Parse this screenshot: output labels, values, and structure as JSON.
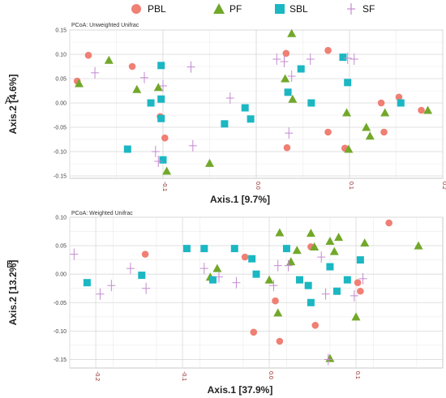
{
  "legend": [
    {
      "label": "PBL",
      "shape": "circle",
      "color": "#f07f74"
    },
    {
      "label": "PF",
      "shape": "triangle",
      "color": "#72a82a"
    },
    {
      "label": "SBL",
      "shape": "square",
      "color": "#1bb7c3"
    },
    {
      "label": "SF",
      "shape": "plus",
      "color": "#c48ad1"
    }
  ],
  "chart_data": [
    {
      "type": "scatter",
      "panel_label": "A",
      "title": "PCoA: Unweighted Unifrac",
      "xlabel": "Axis.1   [9.7%]",
      "ylabel": "Axis.2   [4.6%]",
      "xlim": [
        -0.2,
        0.2
      ],
      "ylim": [
        -0.155,
        0.15
      ],
      "xticks": [
        -0.1,
        0.0,
        0.1,
        0.2
      ],
      "xtick_labels": [
        "-0.1",
        "0.0",
        "0.1",
        "0.2"
      ],
      "yticks": [
        -0.15,
        -0.1,
        -0.05,
        0.0,
        0.05,
        0.1,
        0.15
      ],
      "ytick_labels": [
        "-0.15",
        "-0.10",
        "-0.05",
        "0.00",
        "0.05",
        "0.10",
        "0.15"
      ],
      "grid": true,
      "series": [
        {
          "name": "PBL",
          "points": [
            [
              -0.18,
              0.098
            ],
            [
              -0.192,
              0.045
            ],
            [
              -0.133,
              0.075
            ],
            [
              -0.103,
              -0.028
            ],
            [
              -0.098,
              -0.072
            ],
            [
              0.032,
              0.102
            ],
            [
              0.033,
              -0.092
            ],
            [
              0.077,
              0.108
            ],
            [
              0.077,
              -0.06
            ],
            [
              0.095,
              -0.093
            ],
            [
              0.134,
              0.0
            ],
            [
              0.137,
              -0.06
            ],
            [
              0.153,
              0.012
            ],
            [
              0.177,
              -0.015
            ]
          ]
        },
        {
          "name": "PF",
          "points": [
            [
              -0.19,
              0.04
            ],
            [
              -0.158,
              0.088
            ],
            [
              -0.128,
              0.028
            ],
            [
              -0.105,
              0.032
            ],
            [
              -0.096,
              -0.14
            ],
            [
              -0.05,
              -0.124
            ],
            [
              0.031,
              0.05
            ],
            [
              0.038,
              0.143
            ],
            [
              0.039,
              0.008
            ],
            [
              0.099,
              -0.095
            ],
            [
              0.097,
              -0.02
            ],
            [
              0.118,
              -0.05
            ],
            [
              0.122,
              -0.068
            ],
            [
              0.138,
              -0.02
            ],
            [
              0.184,
              -0.015
            ]
          ]
        },
        {
          "name": "SBL",
          "points": [
            [
              -0.138,
              -0.095
            ],
            [
              -0.113,
              0.0
            ],
            [
              -0.102,
              0.077
            ],
            [
              -0.102,
              0.008
            ],
            [
              -0.102,
              -0.032
            ],
            [
              -0.1,
              -0.117
            ],
            [
              -0.034,
              -0.043
            ],
            [
              -0.012,
              -0.01
            ],
            [
              -0.006,
              -0.033
            ],
            [
              0.034,
              0.022
            ],
            [
              0.048,
              0.07
            ],
            [
              0.059,
              0.0
            ],
            [
              0.093,
              0.094
            ],
            [
              0.098,
              0.042
            ],
            [
              0.155,
              0.0
            ]
          ]
        },
        {
          "name": "SF",
          "points": [
            [
              -0.173,
              0.062
            ],
            [
              -0.12,
              0.052
            ],
            [
              -0.1,
              0.035
            ],
            [
              -0.108,
              -0.1
            ],
            [
              -0.105,
              -0.12
            ],
            [
              -0.07,
              0.074
            ],
            [
              -0.068,
              -0.088
            ],
            [
              -0.028,
              0.01
            ],
            [
              0.022,
              0.09
            ],
            [
              0.03,
              0.085
            ],
            [
              0.038,
              0.055
            ],
            [
              0.035,
              -0.062
            ],
            [
              0.058,
              0.09
            ],
            [
              0.098,
              0.092
            ],
            [
              0.105,
              0.09
            ]
          ]
        }
      ]
    },
    {
      "type": "scatter",
      "panel_label": "B",
      "title": "PCoA: Weighted Unifrac",
      "xlabel": "Axis.1   [37.9%]",
      "ylabel": "Axis.2   [13.2%]",
      "xlim": [
        -0.23,
        0.2
      ],
      "ylim": [
        -0.165,
        0.1
      ],
      "xticks": [
        -0.2,
        -0.1,
        0.0,
        0.1
      ],
      "xtick_labels": [
        "-0.2",
        "-0.1",
        "0.0",
        "0.1"
      ],
      "yticks": [
        -0.15,
        -0.1,
        -0.05,
        0.0,
        0.05,
        0.1
      ],
      "ytick_labels": [
        "-0.15",
        "-0.10",
        "-0.05",
        "0.00",
        "0.05",
        "0.10"
      ],
      "grid": true,
      "series": [
        {
          "name": "PBL",
          "points": [
            [
              -0.143,
              0.035
            ],
            [
              -0.028,
              0.03
            ],
            [
              -0.018,
              -0.102
            ],
            [
              0.007,
              -0.047
            ],
            [
              0.012,
              -0.118
            ],
            [
              0.048,
              0.048
            ],
            [
              0.053,
              -0.09
            ],
            [
              0.102,
              -0.015
            ],
            [
              0.105,
              -0.03
            ],
            [
              0.138,
              0.09
            ]
          ]
        },
        {
          "name": "PF",
          "points": [
            [
              -0.068,
              -0.005
            ],
            [
              -0.06,
              0.01
            ],
            [
              0.0,
              -0.01
            ],
            [
              0.012,
              0.073
            ],
            [
              0.01,
              -0.068
            ],
            [
              0.025,
              0.022
            ],
            [
              0.032,
              0.042
            ],
            [
              0.048,
              0.072
            ],
            [
              0.052,
              0.048
            ],
            [
              0.07,
              0.058
            ],
            [
              0.07,
              -0.148
            ],
            [
              0.075,
              0.04
            ],
            [
              0.08,
              0.065
            ],
            [
              0.1,
              -0.075
            ],
            [
              0.11,
              0.055
            ],
            [
              0.172,
              0.05
            ]
          ]
        },
        {
          "name": "SBL",
          "points": [
            [
              -0.21,
              -0.015
            ],
            [
              -0.147,
              -0.002
            ],
            [
              -0.095,
              0.045
            ],
            [
              -0.075,
              0.045
            ],
            [
              -0.065,
              -0.01
            ],
            [
              -0.04,
              0.045
            ],
            [
              -0.02,
              0.027
            ],
            [
              -0.015,
              0.0
            ],
            [
              0.02,
              0.045
            ],
            [
              0.035,
              -0.01
            ],
            [
              0.045,
              -0.02
            ],
            [
              0.048,
              -0.05
            ],
            [
              0.07,
              0.013
            ],
            [
              0.078,
              -0.03
            ],
            [
              0.09,
              -0.01
            ],
            [
              0.105,
              0.025
            ]
          ]
        },
        {
          "name": "SF",
          "points": [
            [
              -0.225,
              0.035
            ],
            [
              -0.195,
              -0.035
            ],
            [
              -0.182,
              -0.02
            ],
            [
              -0.16,
              0.01
            ],
            [
              -0.142,
              -0.025
            ],
            [
              -0.075,
              0.01
            ],
            [
              -0.058,
              -0.005
            ],
            [
              -0.038,
              -0.015
            ],
            [
              0.005,
              -0.02
            ],
            [
              0.01,
              0.015
            ],
            [
              0.022,
              0.015
            ],
            [
              0.06,
              0.03
            ],
            [
              0.065,
              -0.035
            ],
            [
              0.068,
              -0.15
            ],
            [
              0.098,
              -0.038
            ],
            [
              0.108,
              -0.008
            ]
          ]
        }
      ]
    }
  ]
}
